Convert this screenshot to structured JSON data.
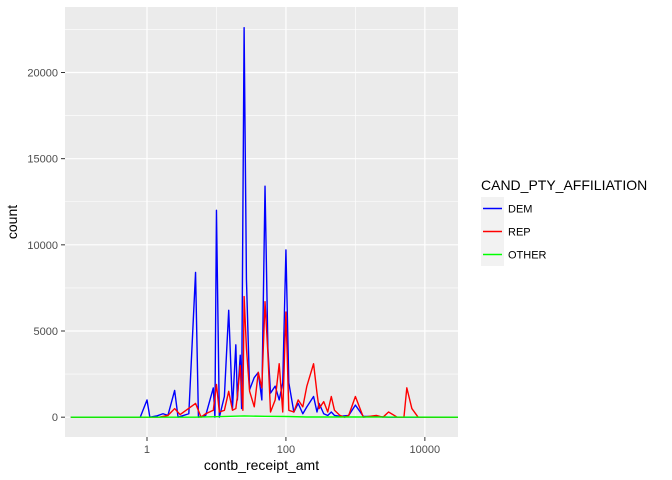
{
  "chart_data": {
    "type": "line",
    "xlabel": "contb_receipt_amt",
    "ylabel": "count",
    "x_scale": "log10",
    "xlim": [
      0.066,
      30000
    ],
    "ylim": [
      -1150,
      23800
    ],
    "x_ticks": [
      {
        "value": 1,
        "label": "1"
      },
      {
        "value": 100,
        "label": "100"
      },
      {
        "value": 10000,
        "label": "10000"
      }
    ],
    "y_ticks": [
      {
        "value": 0,
        "label": "0"
      },
      {
        "value": 5000,
        "label": "5000"
      },
      {
        "value": 10000,
        "label": "10000"
      },
      {
        "value": 15000,
        "label": "15000"
      },
      {
        "value": 20000,
        "label": "20000"
      }
    ],
    "grid": true,
    "legend": {
      "title": "CAND_PTY_AFFILIATION",
      "placement": "right"
    },
    "series": [
      {
        "name": "DEM",
        "color": "#0000ff",
        "points": [
          [
            0.08,
            0
          ],
          [
            0.8,
            0
          ],
          [
            1,
            1000
          ],
          [
            1.1,
            0
          ],
          [
            1.4,
            80
          ],
          [
            1.7,
            200
          ],
          [
            2,
            100
          ],
          [
            2.5,
            1550
          ],
          [
            2.8,
            0
          ],
          [
            4,
            200
          ],
          [
            5,
            8400
          ],
          [
            5.5,
            0
          ],
          [
            7,
            100
          ],
          [
            9,
            1700
          ],
          [
            9.5,
            0
          ],
          [
            10,
            12000
          ],
          [
            11,
            0
          ],
          [
            13,
            1200
          ],
          [
            15,
            6200
          ],
          [
            17,
            500
          ],
          [
            19,
            4200
          ],
          [
            20,
            1000
          ],
          [
            22,
            3600
          ],
          [
            23,
            500
          ],
          [
            25,
            22600
          ],
          [
            27,
            8000
          ],
          [
            30,
            1600
          ],
          [
            35,
            2300
          ],
          [
            40,
            2600
          ],
          [
            45,
            1000
          ],
          [
            50,
            13400
          ],
          [
            55,
            4000
          ],
          [
            60,
            1400
          ],
          [
            70,
            1800
          ],
          [
            80,
            1000
          ],
          [
            90,
            2000
          ],
          [
            100,
            9700
          ],
          [
            110,
            2000
          ],
          [
            130,
            300
          ],
          [
            150,
            800
          ],
          [
            175,
            200
          ],
          [
            200,
            600
          ],
          [
            250,
            1200
          ],
          [
            280,
            300
          ],
          [
            300,
            800
          ],
          [
            350,
            200
          ],
          [
            400,
            100
          ],
          [
            450,
            300
          ],
          [
            500,
            100
          ],
          [
            600,
            50
          ],
          [
            800,
            100
          ],
          [
            1000,
            700
          ],
          [
            1300,
            50
          ],
          [
            2000,
            30
          ],
          [
            3000,
            0
          ],
          [
            5000,
            0
          ],
          [
            30000,
            0
          ]
        ]
      },
      {
        "name": "REP",
        "color": "#ff0000",
        "points": [
          [
            0.08,
            0
          ],
          [
            1.5,
            0
          ],
          [
            2,
            100
          ],
          [
            2.5,
            500
          ],
          [
            3,
            150
          ],
          [
            5,
            800
          ],
          [
            6,
            0
          ],
          [
            7,
            200
          ],
          [
            9,
            400
          ],
          [
            10,
            1900
          ],
          [
            11,
            300
          ],
          [
            13,
            400
          ],
          [
            15,
            1500
          ],
          [
            17,
            400
          ],
          [
            19,
            500
          ],
          [
            20,
            1200
          ],
          [
            22,
            3000
          ],
          [
            24,
            400
          ],
          [
            25,
            7000
          ],
          [
            27,
            4000
          ],
          [
            30,
            1500
          ],
          [
            35,
            600
          ],
          [
            40,
            2600
          ],
          [
            45,
            1700
          ],
          [
            50,
            6700
          ],
          [
            55,
            3700
          ],
          [
            60,
            300
          ],
          [
            70,
            1000
          ],
          [
            80,
            3100
          ],
          [
            90,
            300
          ],
          [
            100,
            6100
          ],
          [
            110,
            400
          ],
          [
            130,
            300
          ],
          [
            150,
            1000
          ],
          [
            175,
            600
          ],
          [
            200,
            1800
          ],
          [
            250,
            3100
          ],
          [
            280,
            1400
          ],
          [
            300,
            500
          ],
          [
            350,
            900
          ],
          [
            400,
            300
          ],
          [
            450,
            1200
          ],
          [
            500,
            400
          ],
          [
            600,
            100
          ],
          [
            700,
            0
          ],
          [
            800,
            100
          ],
          [
            1000,
            1200
          ],
          [
            1300,
            0
          ],
          [
            2000,
            100
          ],
          [
            2500,
            0
          ],
          [
            3000,
            300
          ],
          [
            4000,
            0
          ],
          [
            5000,
            0
          ],
          [
            5500,
            1700
          ],
          [
            6500,
            500
          ],
          [
            8000,
            0
          ],
          [
            30000,
            0
          ]
        ]
      },
      {
        "name": "OTHER",
        "color": "#00ff00",
        "points": [
          [
            0.08,
            0
          ],
          [
            5,
            0
          ],
          [
            10,
            30
          ],
          [
            25,
            70
          ],
          [
            50,
            50
          ],
          [
            100,
            40
          ],
          [
            200,
            10
          ],
          [
            1000,
            10
          ],
          [
            30000,
            0
          ]
        ]
      }
    ]
  }
}
